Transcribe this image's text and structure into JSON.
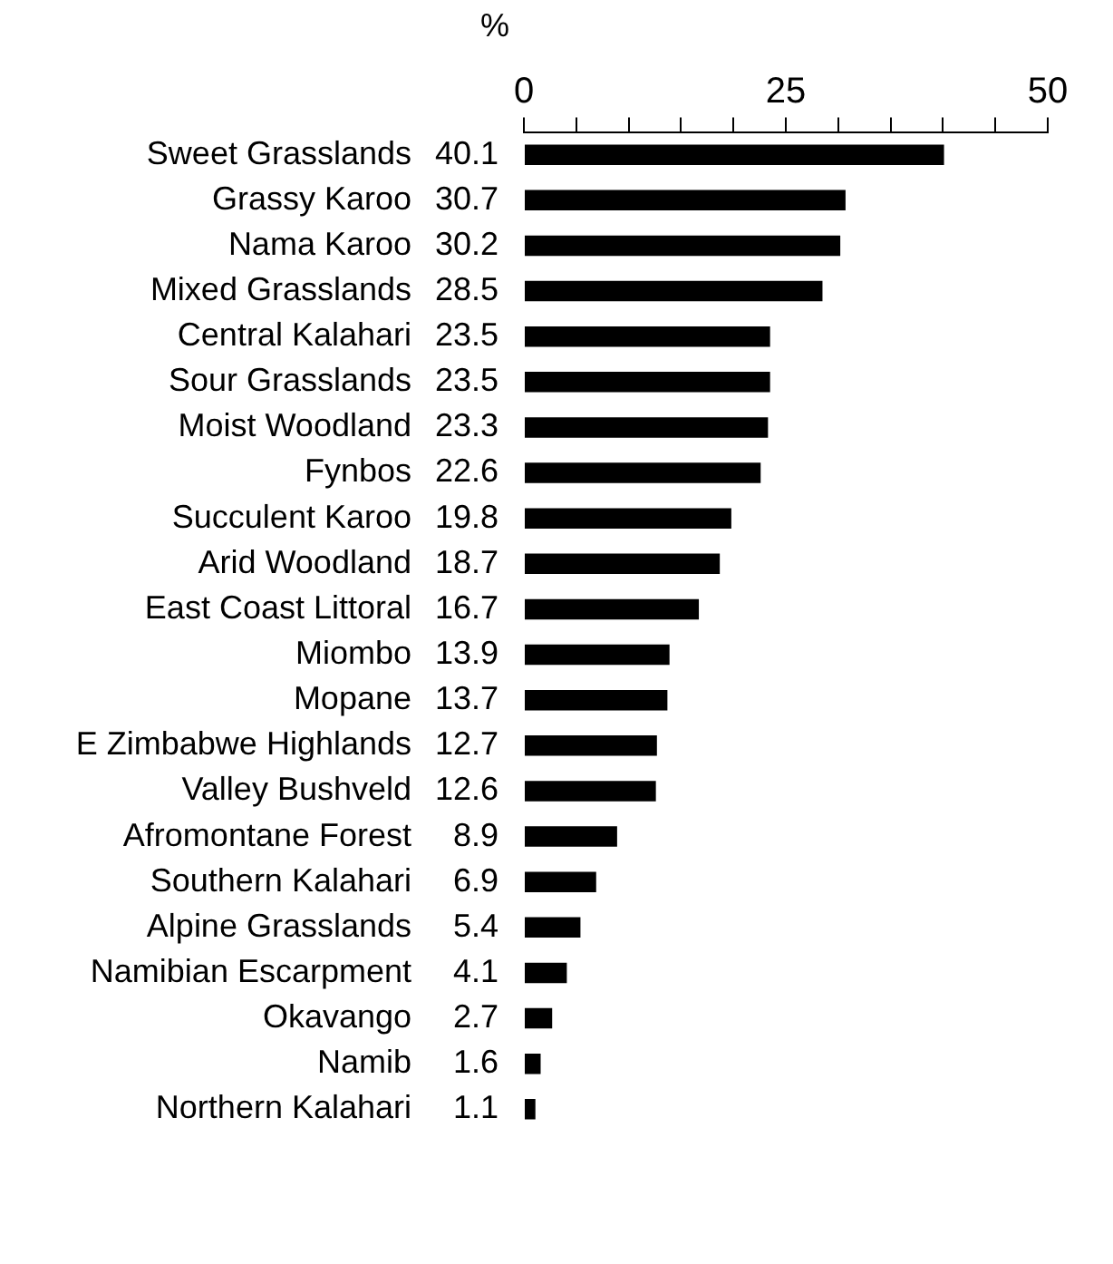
{
  "chart_data": {
    "type": "bar",
    "orientation": "horizontal",
    "xlabel": "%",
    "categories": [
      "Sweet Grasslands",
      "Grassy Karoo",
      "Nama Karoo",
      "Mixed Grasslands",
      "Central Kalahari",
      "Sour Grasslands",
      "Moist Woodland",
      "Fynbos",
      "Succulent Karoo",
      "Arid Woodland",
      "East Coast Littoral",
      "Miombo",
      "Mopane",
      "E Zimbabwe Highlands",
      "Valley Bushveld",
      "Afromontane Forest",
      "Southern Kalahari",
      "Alpine Grasslands",
      "Namibian Escarpment",
      "Okavango",
      "Namib",
      "Northern Kalahari"
    ],
    "values": [
      40.1,
      30.7,
      30.2,
      28.5,
      23.5,
      23.5,
      23.3,
      22.6,
      19.8,
      18.7,
      16.7,
      13.9,
      13.7,
      12.7,
      12.6,
      8.9,
      6.9,
      5.4,
      4.1,
      2.7,
      1.6,
      1.1
    ],
    "color": "#000000",
    "data_labels": true,
    "grid": false,
    "xlim": [
      0,
      50
    ],
    "xticks": [
      0,
      {
        "value": 5,
        "label": null
      },
      {
        "value": 10,
        "label": null
      },
      {
        "value": 15,
        "label": null
      },
      {
        "value": 20,
        "label": null
      },
      25,
      {
        "value": 30,
        "label": null
      },
      {
        "value": 35,
        "label": null
      },
      {
        "value": 40,
        "label": null
      },
      {
        "value": 45,
        "label": null
      },
      50
    ]
  }
}
